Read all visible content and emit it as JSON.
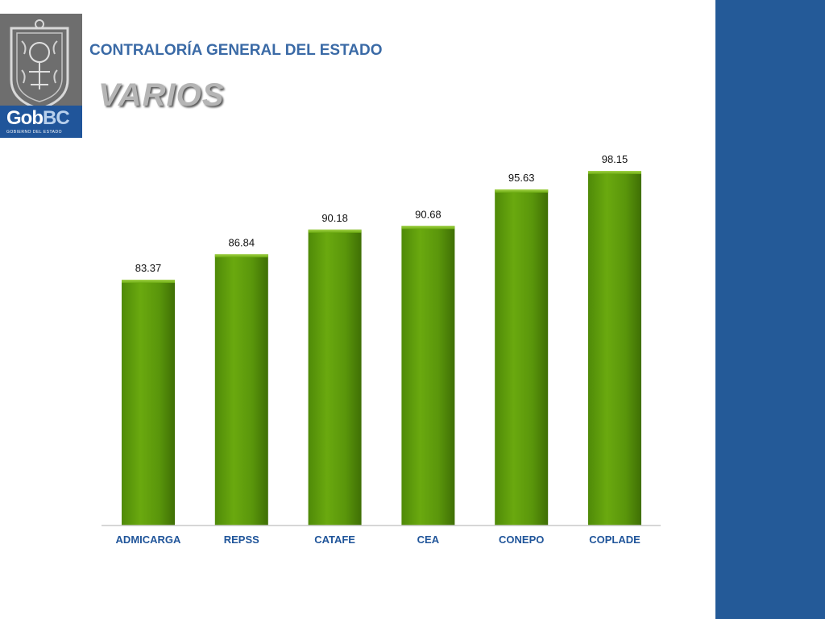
{
  "header": {
    "org_name": "CONTRALORÍA GENERAL DEL ESTADO",
    "page_title": "VARIOS",
    "logo": {
      "word_gob": "Gob",
      "word_bc": "BC",
      "subtitle": "GOBIERNO DEL ESTADO",
      "band_color": "#20559a"
    }
  },
  "side_bar_color": "#245a98",
  "chart_data": {
    "type": "bar",
    "categories": [
      "ADMICARGA",
      "REPSS",
      "CATAFE",
      "CEA",
      "CONEPO",
      "COPLADE"
    ],
    "values": [
      83.37,
      86.84,
      90.18,
      90.68,
      95.63,
      98.15
    ],
    "value_labels": [
      "83.37",
      "86.84",
      "90.18",
      "90.68",
      "95.63",
      "98.15"
    ],
    "title": "",
    "xlabel": "",
    "ylabel": "",
    "ylim": [
      50,
      100
    ],
    "grid": false,
    "bar_color": "#5f9c0c",
    "label_color": "#20559a"
  }
}
